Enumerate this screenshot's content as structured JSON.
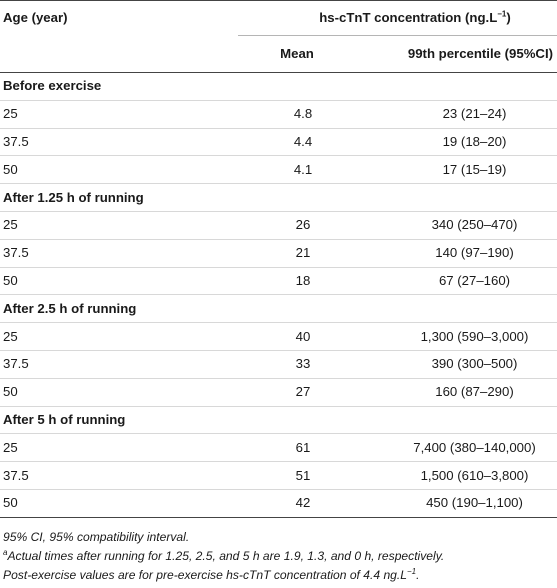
{
  "table": {
    "header": {
      "age_label": "Age (year)",
      "span_label": "hs-cTnT concentration (ng.L",
      "span_sup": "−1",
      "span_close": ")",
      "mean_label": "Mean",
      "percentile_label": "99th percentile (95%CI)"
    },
    "groups": [
      {
        "title": "Before exercise",
        "rows": [
          {
            "age": "25",
            "mean": "4.8",
            "pct": "23 (21–24)"
          },
          {
            "age": "37.5",
            "mean": "4.4",
            "pct": "19 (18–20)"
          },
          {
            "age": "50",
            "mean": "4.1",
            "pct": "17 (15–19)"
          }
        ]
      },
      {
        "title": "After 1.25 h of running",
        "rows": [
          {
            "age": "25",
            "mean": "26",
            "pct": "340 (250–470)"
          },
          {
            "age": "37.5",
            "mean": "21",
            "pct": "140 (97–190)"
          },
          {
            "age": "50",
            "mean": "18",
            "pct": "67 (27–160)"
          }
        ]
      },
      {
        "title": "After 2.5 h of running",
        "rows": [
          {
            "age": "25",
            "mean": "40",
            "pct": "1,300 (590–3,000)"
          },
          {
            "age": "37.5",
            "mean": "33",
            "pct": "390 (300–500)"
          },
          {
            "age": "50",
            "mean": "27",
            "pct": "160 (87–290)"
          }
        ]
      },
      {
        "title": "After 5 h of running",
        "rows": [
          {
            "age": "25",
            "mean": "61",
            "pct": "7,400 (380–140,000)"
          },
          {
            "age": "37.5",
            "mean": "51",
            "pct": "1,500 (610–3,800)"
          },
          {
            "age": "50",
            "mean": "42",
            "pct": "450 (190–1,100)"
          }
        ]
      }
    ]
  },
  "notes": {
    "ci_note": "95% CI, 95% compatibility interval.",
    "footnote_marker": "a",
    "footnote_text": "Actual times after running for 1.25, 2.5, and 5 h are 1.9, 1.3, and 0 h, respectively.",
    "post_note": "Post-exercise values are for pre-exercise hs-cTnT concentration of 4.4 ng.L",
    "post_note_sup": "−1",
    "post_note_end": "."
  }
}
